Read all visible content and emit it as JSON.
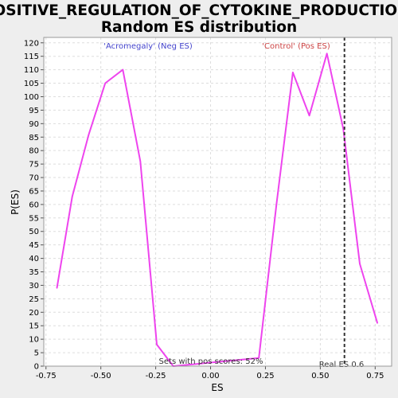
{
  "chart_data": {
    "type": "line",
    "title": "POSITIVE_REGULATION_OF_CYTOKINE_PRODUCTION:",
    "subtitle": "Random ES distribution",
    "xlabel": "ES",
    "ylabel": "P(ES)",
    "xlim": [
      -0.76,
      0.825
    ],
    "ylim": [
      0,
      122
    ],
    "x_ticks": [
      -0.75,
      -0.5,
      -0.25,
      0.0,
      0.25,
      0.5,
      0.75
    ],
    "x_tick_labels": [
      "-0.75",
      "-0.50",
      "-0.25",
      "0.00",
      "0.25",
      "0.50",
      "0.75"
    ],
    "y_ticks": [
      0,
      5,
      10,
      15,
      20,
      25,
      30,
      35,
      40,
      45,
      50,
      55,
      60,
      65,
      70,
      75,
      80,
      85,
      90,
      95,
      100,
      105,
      110,
      115,
      120
    ],
    "grid": true,
    "series": [
      {
        "color": "#ee44ee",
        "x": [
          -0.7,
          -0.63,
          -0.555,
          -0.48,
          -0.4,
          -0.32,
          -0.245,
          -0.17,
          0.22,
          0.3,
          0.375,
          0.45,
          0.53,
          0.605,
          0.68,
          0.76
        ],
        "y": [
          29,
          63,
          86,
          105,
          110,
          76,
          8,
          0,
          3,
          60,
          109,
          93,
          116,
          88,
          38,
          16
        ]
      }
    ],
    "annotations": {
      "neg_label": "'Acromegaly' (Neg ES)",
      "neg_color": "#4444cc",
      "pos_label": "'Control' (Pos ES)",
      "pos_color": "#cc4444",
      "pos_scores": "Sets with pos scores: 52%",
      "real_es_label": "Real ES 0.6",
      "real_es_value": 0.61
    }
  }
}
